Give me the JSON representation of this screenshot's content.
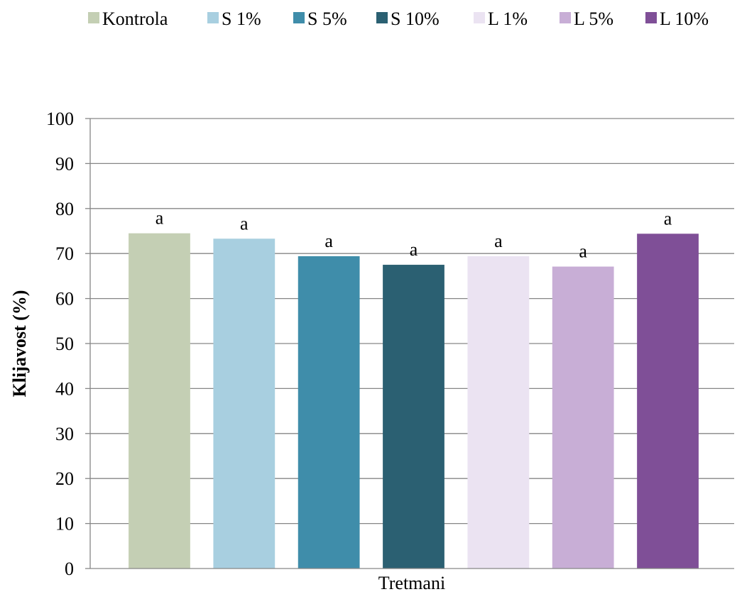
{
  "chart_data": {
    "type": "bar",
    "title": "",
    "xlabel": "Tretmani",
    "ylabel": "Klijavost (%)",
    "ylim": [
      0,
      100
    ],
    "yticks": [
      0,
      10,
      20,
      30,
      40,
      50,
      60,
      70,
      80,
      90,
      100
    ],
    "grid": true,
    "legend_position": "top",
    "series": [
      {
        "name": "Kontrola",
        "value": 74.5,
        "label": "a",
        "color": "#c4cfb4"
      },
      {
        "name": "S 1%",
        "value": 73.3,
        "label": "a",
        "color": "#a8cfe0"
      },
      {
        "name": "S 5%",
        "value": 69.4,
        "label": "a",
        "color": "#3f8daa"
      },
      {
        "name": "S 10%",
        "value": 67.5,
        "label": "a",
        "color": "#2b6072"
      },
      {
        "name": "L 1%",
        "value": 69.4,
        "label": "a",
        "color": "#ebe3f2"
      },
      {
        "name": "L 5%",
        "value": 67.1,
        "label": "a",
        "color": "#c8aed6"
      },
      {
        "name": "L 10%",
        "value": 74.4,
        "label": "a",
        "color": "#7f4f97"
      }
    ]
  }
}
